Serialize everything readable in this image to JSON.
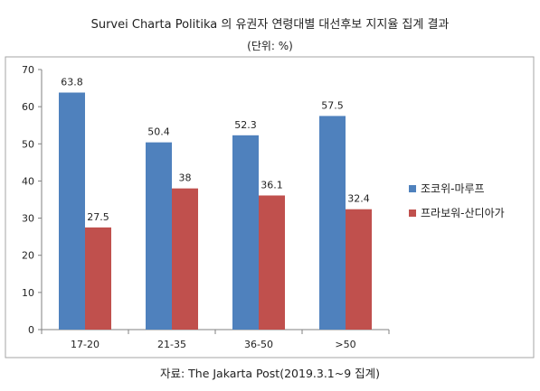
{
  "chart_data": {
    "type": "bar",
    "title": "Survei Charta Politika 의 유권자 연령대별 대선후보 지지율 집계 결과",
    "subtitle": "(단위: %)",
    "categories": [
      "17-20",
      "21-35",
      "36-50",
      ">50"
    ],
    "series": [
      {
        "name": "조코위-마루프",
        "values": [
          63.8,
          50.4,
          52.3,
          57.5
        ],
        "color": "#4f81bd"
      },
      {
        "name": "프라보워-산디아가",
        "values": [
          27.5,
          38,
          36.1,
          32.4
        ],
        "color": "#c0504d"
      }
    ],
    "yticks": [
      0,
      10,
      20,
      30,
      40,
      50,
      60,
      70
    ],
    "ylim": [
      0,
      70
    ],
    "xlabel": "",
    "ylabel": "",
    "grid": false,
    "legend": "right",
    "source": "자료: The Jakarta Post(2019.3.1~9 집계)"
  }
}
